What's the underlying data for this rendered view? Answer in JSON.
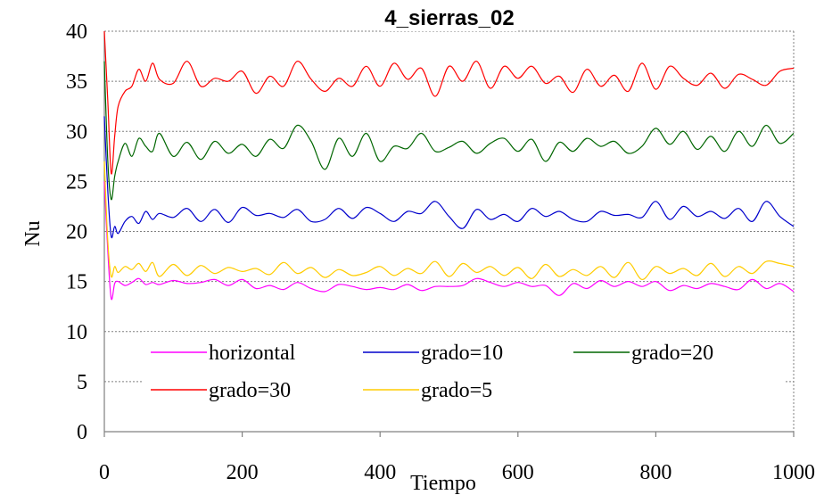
{
  "chart_data": {
    "type": "line",
    "title": "4_sierras_02",
    "xlabel": "Tiempo",
    "ylabel": "Nu",
    "xlim": [
      0,
      1000
    ],
    "ylim": [
      0,
      40
    ],
    "xticks": [
      "0",
      "200",
      "400",
      "600",
      "800",
      "1000"
    ],
    "yticks": [
      "0",
      "5",
      "10",
      "15",
      "20",
      "25",
      "30",
      "35",
      "40"
    ],
    "grid": true,
    "legend_position": "bottom-left inside",
    "series": [
      {
        "name": "horizontal",
        "color": "#ff00ff",
        "x": [
          0,
          5,
          10,
          15,
          20,
          30,
          40,
          50,
          60,
          70,
          80,
          100,
          120,
          140,
          160,
          180,
          200,
          220,
          240,
          260,
          280,
          300,
          320,
          340,
          360,
          380,
          400,
          420,
          440,
          460,
          480,
          500,
          520,
          540,
          560,
          580,
          600,
          620,
          640,
          660,
          680,
          700,
          720,
          740,
          760,
          780,
          800,
          820,
          840,
          860,
          880,
          900,
          920,
          940,
          960,
          980,
          1000
        ],
        "y": [
          25,
          18,
          13.3,
          14.8,
          15.0,
          14.6,
          14.9,
          15.3,
          14.7,
          14.9,
          14.7,
          15.1,
          14.8,
          14.9,
          15.2,
          14.6,
          15.2,
          14.3,
          14.6,
          14.2,
          14.9,
          14.3,
          14.0,
          14.7,
          14.5,
          14.2,
          14.4,
          14.2,
          14.7,
          14.1,
          14.5,
          14.5,
          14.6,
          15.3,
          14.9,
          14.5,
          14.9,
          14.5,
          14.6,
          13.6,
          14.8,
          14.3,
          15.1,
          14.5,
          15.0,
          14.5,
          15.0,
          14.1,
          14.6,
          14.3,
          14.8,
          14.5,
          14.2,
          15.2,
          14.3,
          14.8,
          14.0
        ]
      },
      {
        "name": "grado=10",
        "color": "#0000cc",
        "x": [
          0,
          5,
          10,
          15,
          20,
          30,
          40,
          50,
          60,
          70,
          80,
          100,
          120,
          140,
          160,
          180,
          200,
          220,
          240,
          260,
          280,
          300,
          320,
          340,
          360,
          380,
          400,
          420,
          440,
          460,
          480,
          500,
          520,
          540,
          560,
          580,
          600,
          620,
          640,
          660,
          680,
          700,
          720,
          740,
          760,
          780,
          800,
          820,
          840,
          860,
          880,
          900,
          920,
          940,
          960,
          980,
          1000
        ],
        "y": [
          31.5,
          24,
          19.5,
          20.5,
          19.8,
          21.0,
          21.5,
          20.8,
          22.0,
          21.2,
          21.8,
          21.4,
          22.3,
          21.0,
          22.2,
          20.9,
          22.4,
          21.6,
          21.8,
          21.4,
          22.2,
          21.0,
          21.2,
          22.3,
          21.3,
          22.4,
          21.8,
          21.0,
          22.0,
          21.8,
          23.0,
          21.5,
          20.3,
          22.2,
          21.2,
          21.7,
          21.0,
          22.3,
          21.5,
          22.0,
          21.2,
          21.0,
          22.0,
          21.6,
          21.7,
          21.4,
          23.0,
          21.2,
          22.5,
          21.5,
          22.0,
          21.3,
          22.3,
          21.0,
          23.0,
          21.5,
          20.5
        ]
      },
      {
        "name": "grado=20",
        "color": "#006600",
        "x": [
          0,
          5,
          10,
          15,
          20,
          30,
          40,
          50,
          60,
          70,
          80,
          100,
          120,
          140,
          160,
          180,
          200,
          220,
          240,
          260,
          280,
          300,
          320,
          340,
          360,
          380,
          400,
          420,
          440,
          460,
          480,
          500,
          520,
          540,
          560,
          580,
          600,
          620,
          640,
          660,
          680,
          700,
          720,
          740,
          760,
          780,
          800,
          820,
          840,
          860,
          880,
          900,
          920,
          940,
          960,
          980,
          1000
        ],
        "y": [
          37,
          27,
          23.2,
          25.5,
          27.0,
          28.8,
          27.5,
          29.3,
          28.5,
          28.0,
          29.8,
          27.5,
          28.9,
          27.2,
          29.0,
          27.8,
          28.7,
          27.5,
          29.2,
          28.3,
          30.6,
          29.0,
          26.2,
          29.3,
          27.5,
          29.8,
          27.0,
          28.5,
          28.3,
          29.8,
          28.0,
          28.4,
          29.0,
          27.8,
          28.8,
          29.3,
          28.0,
          29.2,
          27.0,
          28.9,
          28.0,
          29.3,
          28.5,
          29.0,
          27.8,
          28.5,
          30.3,
          28.7,
          30.0,
          28.2,
          29.5,
          28.0,
          30.0,
          28.5,
          30.6,
          28.8,
          29.8
        ]
      },
      {
        "name": "grado=30",
        "color": "#ff0000",
        "x": [
          0,
          5,
          10,
          15,
          20,
          30,
          40,
          50,
          60,
          70,
          80,
          100,
          120,
          140,
          160,
          180,
          200,
          220,
          240,
          260,
          280,
          300,
          320,
          340,
          360,
          380,
          400,
          420,
          440,
          460,
          480,
          500,
          520,
          540,
          560,
          580,
          600,
          620,
          640,
          660,
          680,
          700,
          720,
          740,
          760,
          780,
          800,
          820,
          840,
          860,
          880,
          900,
          920,
          940,
          960,
          980,
          1000
        ],
        "y": [
          40,
          33,
          25.8,
          29.5,
          32.5,
          34.0,
          34.5,
          36.2,
          35.0,
          36.8,
          35.2,
          34.8,
          37.0,
          34.5,
          35.3,
          35.0,
          36.0,
          33.8,
          35.5,
          34.5,
          37.0,
          35.2,
          34.0,
          35.3,
          34.5,
          36.5,
          34.5,
          36.8,
          35.2,
          36.3,
          33.5,
          36.5,
          35.0,
          37.0,
          34.3,
          36.5,
          35.3,
          36.5,
          34.8,
          35.5,
          33.9,
          36.2,
          34.5,
          35.6,
          34.0,
          36.8,
          34.2,
          36.5,
          35.3,
          34.6,
          35.8,
          34.3,
          35.7,
          35.2,
          34.6,
          36.0,
          36.3
        ]
      },
      {
        "name": "grado=5",
        "color": "#ffcc00",
        "x": [
          0,
          5,
          10,
          15,
          20,
          30,
          40,
          50,
          60,
          70,
          80,
          100,
          120,
          140,
          160,
          180,
          200,
          220,
          240,
          260,
          280,
          300,
          320,
          340,
          360,
          380,
          400,
          420,
          440,
          460,
          480,
          500,
          520,
          540,
          560,
          580,
          600,
          620,
          640,
          660,
          680,
          700,
          720,
          740,
          760,
          780,
          800,
          820,
          840,
          860,
          880,
          900,
          920,
          940,
          960,
          980,
          1000
        ],
        "y": [
          27,
          19,
          15.5,
          16.5,
          15.9,
          16.5,
          16.2,
          16.8,
          16.0,
          16.9,
          15.5,
          16.7,
          15.6,
          16.6,
          15.8,
          16.4,
          16.0,
          16.3,
          15.7,
          16.9,
          15.8,
          16.4,
          15.4,
          16.2,
          15.6,
          15.9,
          16.5,
          15.6,
          16.3,
          15.8,
          17.0,
          15.5,
          16.8,
          15.9,
          16.5,
          15.6,
          16.4,
          15.3,
          16.7,
          15.5,
          16.2,
          15.6,
          16.5,
          15.4,
          16.9,
          15.2,
          16.5,
          15.8,
          16.3,
          15.6,
          16.8,
          15.5,
          16.5,
          15.8,
          17.0,
          16.8,
          16.5
        ]
      }
    ]
  }
}
